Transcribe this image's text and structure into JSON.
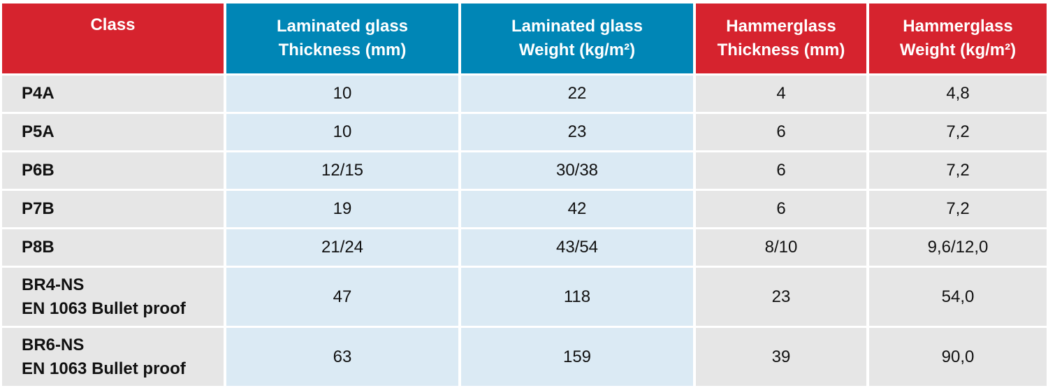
{
  "headers": {
    "class": "Class",
    "lam_thickness": [
      "Laminated glass",
      "Thickness (mm)"
    ],
    "lam_weight": [
      "Laminated glass",
      "Weight (kg/m²)"
    ],
    "ham_thickness": [
      "Hammerglass",
      "Thickness (mm)"
    ],
    "ham_weight": [
      "Hammerglass",
      "Weight (kg/m²)"
    ]
  },
  "rows": [
    {
      "class": [
        "P4A"
      ],
      "lam_thickness": "10",
      "lam_weight": "22",
      "ham_thickness": "4",
      "ham_weight": "4,8"
    },
    {
      "class": [
        "P5A"
      ],
      "lam_thickness": "10",
      "lam_weight": "23",
      "ham_thickness": "6",
      "ham_weight": "7,2"
    },
    {
      "class": [
        "P6B"
      ],
      "lam_thickness": "12/15",
      "lam_weight": "30/38",
      "ham_thickness": "6",
      "ham_weight": "7,2"
    },
    {
      "class": [
        "P7B"
      ],
      "lam_thickness": "19",
      "lam_weight": "42",
      "ham_thickness": "6",
      "ham_weight": "7,2"
    },
    {
      "class": [
        "P8B"
      ],
      "lam_thickness": "21/24",
      "lam_weight": "43/54",
      "ham_thickness": "8/10",
      "ham_weight": "9,6/12,0"
    },
    {
      "class": [
        "BR4-NS",
        "EN 1063 Bullet proof"
      ],
      "lam_thickness": "47",
      "lam_weight": "118",
      "ham_thickness": "23",
      "ham_weight": "54,0"
    },
    {
      "class": [
        "BR6-NS",
        "EN 1063 Bullet proof"
      ],
      "lam_thickness": "63",
      "lam_weight": "159",
      "ham_thickness": "39",
      "ham_weight": "90,0"
    }
  ],
  "colors": {
    "header_red": "#d6232e",
    "header_blue": "#0086b6",
    "lam_cell": "#dbeaf4",
    "grey_cell": "#e6e6e6"
  }
}
